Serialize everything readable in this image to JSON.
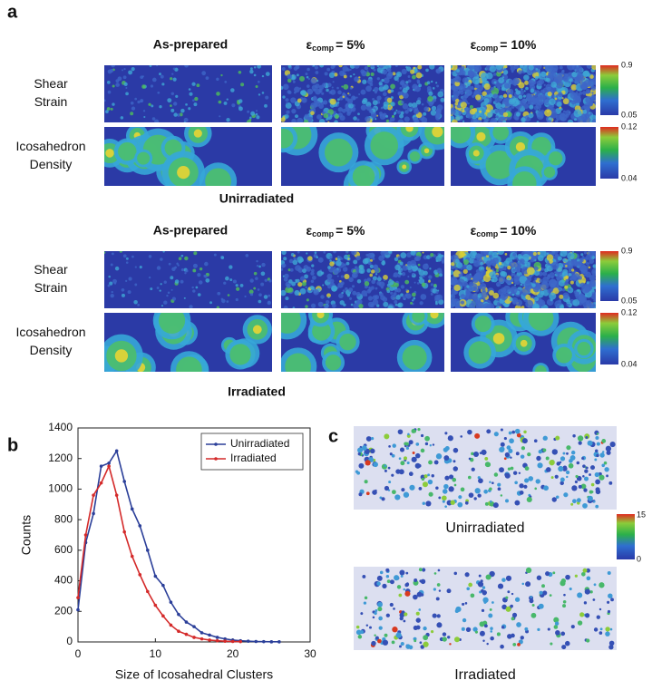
{
  "panel_a": {
    "label": "a",
    "groups": [
      {
        "name": "Unirradiated",
        "columns": [
          {
            "text": "As-prepared"
          },
          {
            "symbol": "ε",
            "subscript": "comp",
            "rest": "= 5%"
          },
          {
            "symbol": "ε",
            "subscript": "comp",
            "rest": "= 10%"
          }
        ],
        "rows": [
          {
            "label": [
              "Shear",
              "Strain"
            ],
            "max": "0.9",
            "min": "0.05"
          },
          {
            "label": [
              "Icosahedron",
              "Density"
            ],
            "max": "0.12",
            "min": "0.04"
          }
        ]
      },
      {
        "name": "Irradiated",
        "columns": [
          {
            "text": "As-prepared"
          },
          {
            "symbol": "ε",
            "subscript": "comp",
            "rest": "= 5%"
          },
          {
            "symbol": "ε",
            "subscript": "comp",
            "rest": "= 10%"
          }
        ],
        "rows": [
          {
            "label": [
              "Shear",
              "Strain"
            ],
            "max": "0.9",
            "min": "0.05"
          },
          {
            "label": [
              "Icosahedron",
              "Density"
            ],
            "max": "0.12",
            "min": "0.04"
          }
        ]
      }
    ]
  },
  "chart_data": {
    "type": "line",
    "label": "b",
    "x_label": "Size of Icosahedral Clusters",
    "y_label": "Counts",
    "x": [
      0,
      1,
      2,
      3,
      4,
      5,
      6,
      7,
      8,
      9,
      10,
      11,
      12,
      13,
      14,
      15,
      16,
      17,
      18,
      19,
      20,
      21,
      22,
      23,
      24,
      25,
      26
    ],
    "series": [
      {
        "name": "Unirradiated",
        "color": "#2b3f99",
        "values": [
          210,
          650,
          840,
          1150,
          1170,
          1250,
          1050,
          870,
          760,
          600,
          430,
          370,
          260,
          180,
          130,
          100,
          60,
          45,
          30,
          20,
          12,
          8,
          5,
          3,
          2,
          1,
          1
        ]
      },
      {
        "name": "Irradiated",
        "color": "#d42a2a",
        "values": [
          290,
          700,
          960,
          1040,
          1150,
          960,
          720,
          560,
          440,
          330,
          240,
          170,
          110,
          70,
          50,
          30,
          20,
          12,
          8,
          5,
          3,
          2,
          null,
          null,
          null,
          null,
          null
        ]
      }
    ],
    "xlim": [
      0,
      30
    ],
    "ylim": [
      0,
      1400
    ],
    "xticks": [
      0,
      10,
      20,
      30
    ],
    "yticks": [
      0,
      200,
      400,
      600,
      800,
      1000,
      1200,
      1400
    ],
    "legend": "upper-right"
  },
  "panel_c": {
    "label": "c",
    "images": [
      "Unirradiated",
      "Irradiated"
    ],
    "colorbar": {
      "max": "15",
      "min": "0"
    }
  }
}
